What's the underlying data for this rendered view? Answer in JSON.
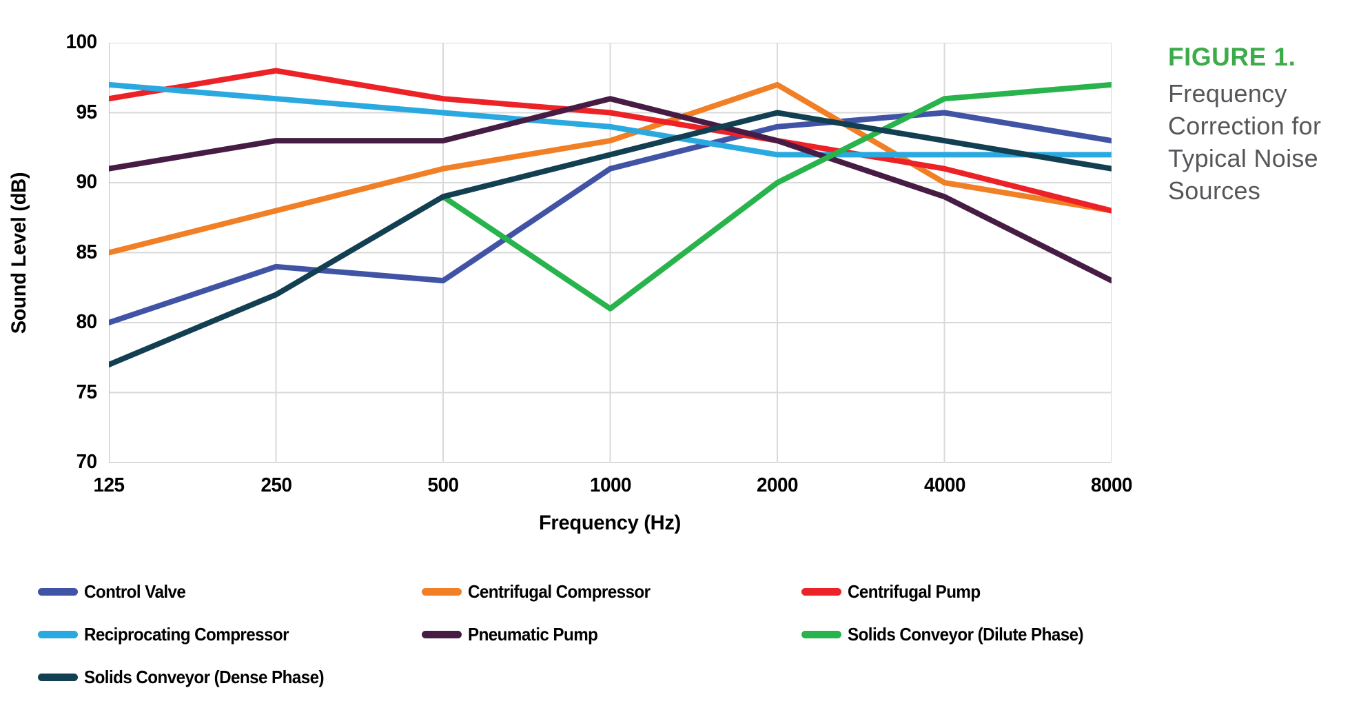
{
  "figure": {
    "label": "FIGURE 1.",
    "caption_lines": [
      "Frequency",
      "Correction for",
      "Typical Noise",
      "Sources"
    ],
    "label_color": "#3cab4a",
    "caption_color": "#55565a"
  },
  "chart_data": {
    "type": "line",
    "title": "Frequency Correction for Typical Noise Sources",
    "xlabel": "Frequency (Hz)",
    "ylabel": "Sound Level (dB)",
    "x_categories": [
      "125",
      "250",
      "500",
      "1000",
      "2000",
      "4000",
      "8000"
    ],
    "yticks": [
      100,
      95,
      90,
      85,
      80,
      75,
      70
    ],
    "ylim": [
      70,
      100
    ],
    "grid": true,
    "legend_position": "bottom",
    "series": [
      {
        "name": "Control Valve",
        "color": "#4053a5",
        "values": [
          80,
          84,
          83,
          91,
          94,
          95,
          93
        ]
      },
      {
        "name": "Centrifugal Compressor",
        "color": "#f07f26",
        "values": [
          85,
          88,
          91,
          93,
          97,
          90,
          88
        ]
      },
      {
        "name": "Centrifugal Pump",
        "color": "#ec2227",
        "values": [
          96,
          98,
          96,
          95,
          93,
          91,
          88
        ]
      },
      {
        "name": "Reciprocating Compressor",
        "color": "#2aa9e0",
        "values": [
          97,
          96,
          95,
          94,
          92,
          92,
          92
        ]
      },
      {
        "name": "Pneumatic Pump",
        "color": "#461c44",
        "values": [
          91,
          93,
          93,
          96,
          93,
          89,
          83
        ]
      },
      {
        "name": "Solids Conveyor (Dilute Phase)",
        "color": "#28b34c",
        "values": [
          null,
          null,
          89,
          81,
          90,
          96,
          97
        ]
      },
      {
        "name": "Solids Conveyor (Dense Phase)",
        "color": "#123f51",
        "values": [
          77,
          82,
          89,
          92,
          95,
          93,
          91
        ]
      }
    ]
  },
  "colors": {
    "gridline": "#d9d9d9",
    "axis_line": "#bfbfbf",
    "tick_text": "#000000"
  }
}
